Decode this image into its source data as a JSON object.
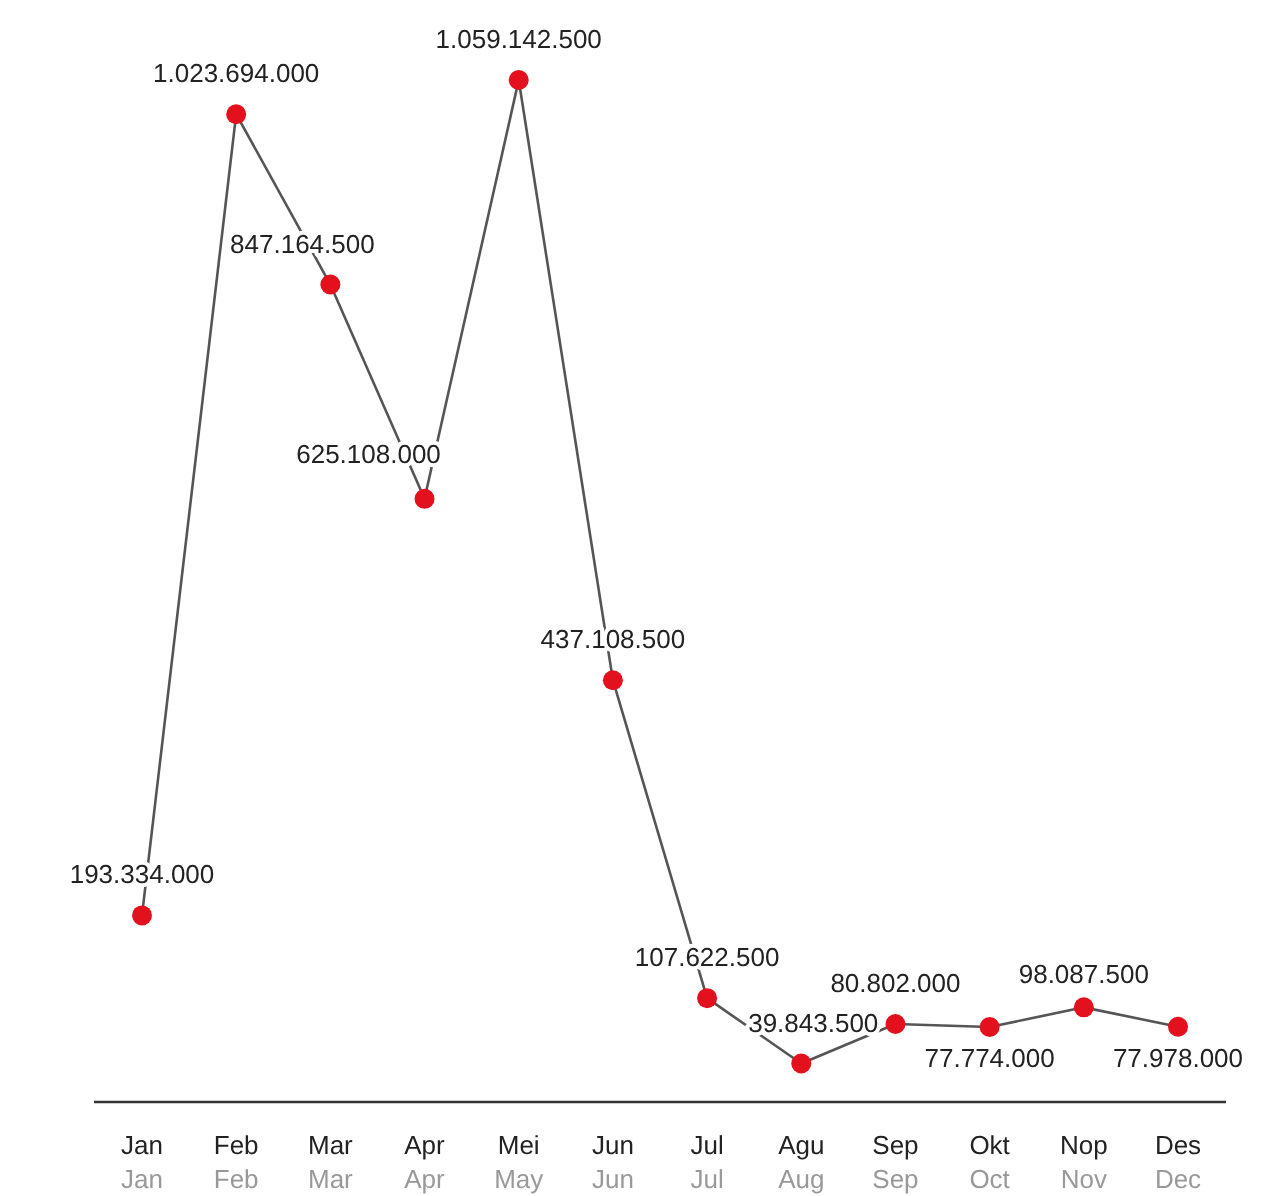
{
  "chart_data": {
    "type": "line",
    "categories": [
      "Jan\nJan",
      "Feb\nFeb",
      "Mar\nMar",
      "Apr\nApr",
      "Mei\nMay",
      "Jun\nJun",
      "Jul\nJul",
      "Agu\nAug",
      "Sep\nSep",
      "Okt\nOct",
      "Nop\nNov",
      "Des\nDec"
    ],
    "series": [
      {
        "color": "#e3101e",
        "values": [
          193334000,
          1023694000,
          847164500,
          625108000,
          1059142500,
          437108500,
          107622500,
          39843500,
          80802000,
          77774000,
          98087500,
          77978000
        ],
        "value_labels": [
          "193.334.000",
          "1.023.694.000",
          "847.164.500",
          "625.108.000",
          "1.059.142.500",
          "437.108.500",
          "107.622.500",
          "39.843.500",
          "80.802.000",
          "77.774.000",
          "98.087.500",
          "77.978.000"
        ]
      }
    ],
    "marker": "circle"
  }
}
